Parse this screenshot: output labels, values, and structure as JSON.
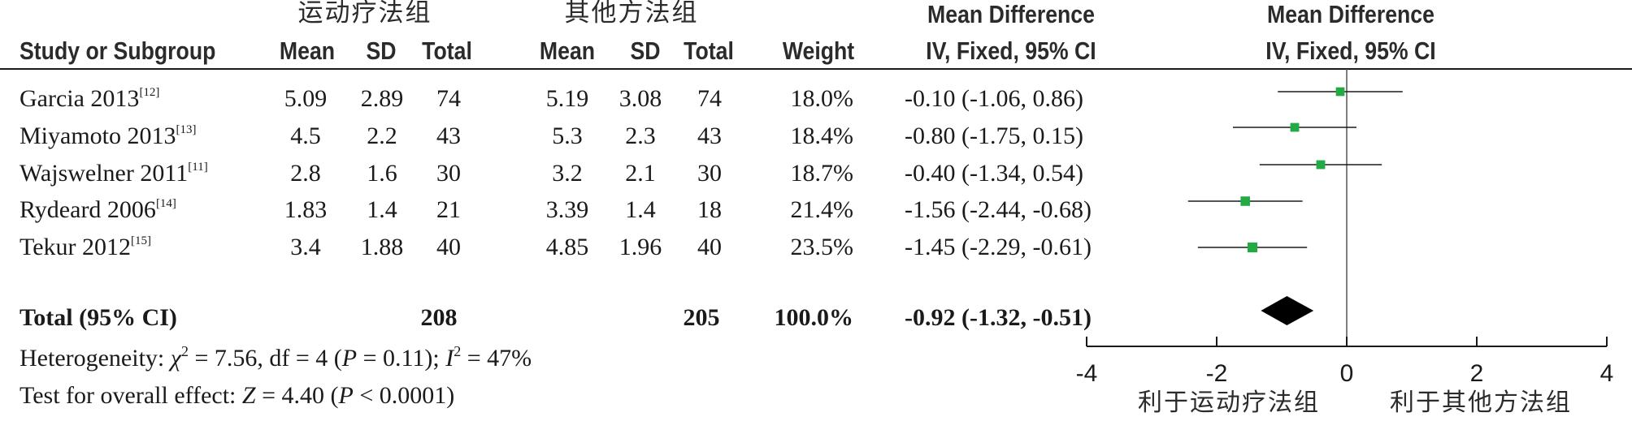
{
  "groups": {
    "exp": "运动疗法组",
    "ctrl": "其他方法组"
  },
  "headers": {
    "study": "Study or Subgroup",
    "mean": "Mean",
    "sd": "SD",
    "total": "Total",
    "weight": "Weight",
    "md_title": "Mean Difference",
    "md_method": "IV, Fixed, 95% CI"
  },
  "rows": [
    {
      "study": "Garcia 2013",
      "ref": "[12]",
      "e_mean": "5.09",
      "e_sd": "2.89",
      "e_total": "74",
      "c_mean": "5.19",
      "c_sd": "3.08",
      "c_total": "74",
      "weight": "18.0%",
      "ci": "-0.10 (-1.06, 0.86)"
    },
    {
      "study": "Miyamoto 2013",
      "ref": "[13]",
      "e_mean": "4.5",
      "e_sd": "2.2",
      "e_total": "43",
      "c_mean": "5.3",
      "c_sd": "2.3",
      "c_total": "43",
      "weight": "18.4%",
      "ci": "-0.80 (-1.75, 0.15)"
    },
    {
      "study": "Wajswelner 2011",
      "ref": "[11]",
      "e_mean": "2.8",
      "e_sd": "1.6",
      "e_total": "30",
      "c_mean": "3.2",
      "c_sd": "2.1",
      "c_total": "30",
      "weight": "18.7%",
      "ci": "-0.40 (-1.34, 0.54)"
    },
    {
      "study": "Rydeard 2006",
      "ref": "[14]",
      "e_mean": "1.83",
      "e_sd": "1.4",
      "e_total": "21",
      "c_mean": "3.39",
      "c_sd": "1.4",
      "c_total": "18",
      "weight": "21.4%",
      "ci": "-1.56 (-2.44, -0.68)"
    },
    {
      "study": "Tekur 2012",
      "ref": "[15]",
      "e_mean": "3.4",
      "e_sd": "1.88",
      "e_total": "40",
      "c_mean": "4.85",
      "c_sd": "1.96",
      "c_total": "40",
      "weight": "23.5%",
      "ci": "-1.45 (-2.29, -0.61)"
    }
  ],
  "total": {
    "label": "Total (95% CI)",
    "e_total": "208",
    "c_total": "205",
    "weight": "100.0%",
    "ci": "-0.92 (-1.32, -0.51)"
  },
  "heterogeneity": {
    "prefix": "Heterogeneity: ",
    "chi": "χ",
    "chi_rest": " = 7.56, df = 4 (",
    "p1": "P",
    "p1_rest": " = 0.11); ",
    "i": "I",
    "i_rest": " = 47%",
    "sq": "2"
  },
  "overall": {
    "prefix": "Test for overall effect: ",
    "z": "Z",
    "z_rest": " = 4.40 (",
    "p": "P",
    "p_rest": " < 0.0001)"
  },
  "favours": {
    "left": "利于运动疗法组",
    "right": "利于其他方法组"
  },
  "chart_data": {
    "type": "forest",
    "xlim": [
      -4,
      4
    ],
    "ticks": [
      -4,
      -2,
      0,
      2,
      4
    ],
    "tick_labels": [
      "-4",
      "-2",
      "0",
      "2",
      "4"
    ],
    "marker_color": "#22aa44",
    "studies": [
      {
        "name": "Garcia 2013",
        "md": -0.1,
        "lo": -1.06,
        "hi": 0.86,
        "weight": 18.0
      },
      {
        "name": "Miyamoto 2013",
        "md": -0.8,
        "lo": -1.75,
        "hi": 0.15,
        "weight": 18.4
      },
      {
        "name": "Wajswelner 2011",
        "md": -0.4,
        "lo": -1.34,
        "hi": 0.54,
        "weight": 18.7
      },
      {
        "name": "Rydeard 2006",
        "md": -1.56,
        "lo": -2.44,
        "hi": -0.68,
        "weight": 21.4
      },
      {
        "name": "Tekur 2012",
        "md": -1.45,
        "lo": -2.29,
        "hi": -0.61,
        "weight": 23.5
      }
    ],
    "pooled": {
      "md": -0.92,
      "lo": -1.32,
      "hi": -0.51
    }
  }
}
